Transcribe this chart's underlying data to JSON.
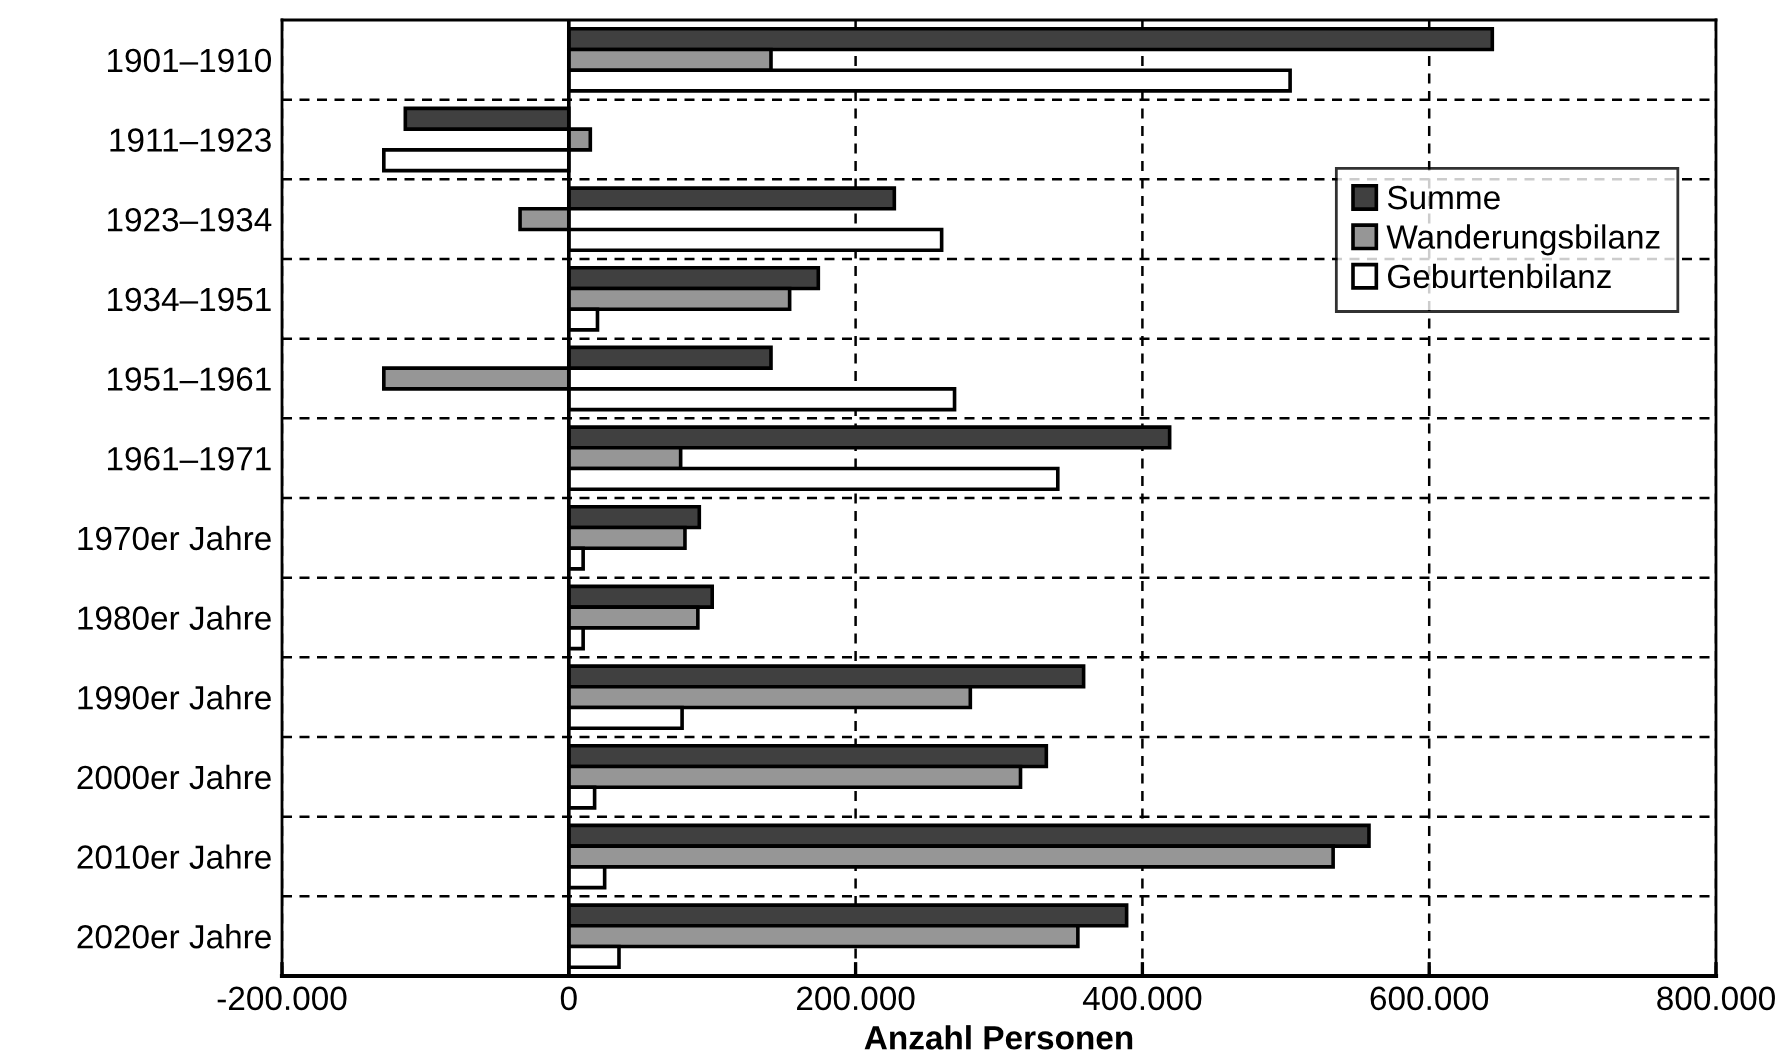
{
  "chart_data": {
    "type": "bar",
    "orientation": "horizontal",
    "xlabel": "Anzahl Personen",
    "categories": [
      "1901–1910",
      "1911–1923",
      "1923–1934",
      "1934–1951",
      "1951–1961",
      "1961–1971",
      "1970er Jahre",
      "1980er Jahre",
      "1990er Jahre",
      "2000er Jahre",
      "2010er Jahre",
      "2020er Jahre"
    ],
    "series": [
      {
        "name": "Summe",
        "color": "#404040",
        "values": [
          644000,
          -114000,
          227000,
          174000,
          141000,
          419000,
          91000,
          100000,
          359000,
          333000,
          558000,
          389000
        ]
      },
      {
        "name": "Wanderungsbilanz",
        "color": "#969696",
        "values": [
          141000,
          15000,
          -34000,
          154000,
          -129000,
          78000,
          81000,
          90000,
          280000,
          315000,
          533000,
          355000
        ]
      },
      {
        "name": "Geburtenbilanz",
        "color": "#ffffff",
        "values": [
          503000,
          -129000,
          260000,
          20000,
          269000,
          341000,
          10000,
          10000,
          79000,
          18000,
          25000,
          35000
        ]
      }
    ],
    "xlim": [
      -200000,
      800000
    ],
    "xticks": [
      {
        "value": -200000,
        "label": "-200.000"
      },
      0,
      {
        "value": 200000,
        "label": "200.000"
      },
      {
        "value": 400000,
        "label": "400.000"
      },
      {
        "value": 600000,
        "label": "600.000"
      },
      {
        "value": 800000,
        "label": "800.000"
      }
    ],
    "grid": true,
    "legend": "right"
  }
}
